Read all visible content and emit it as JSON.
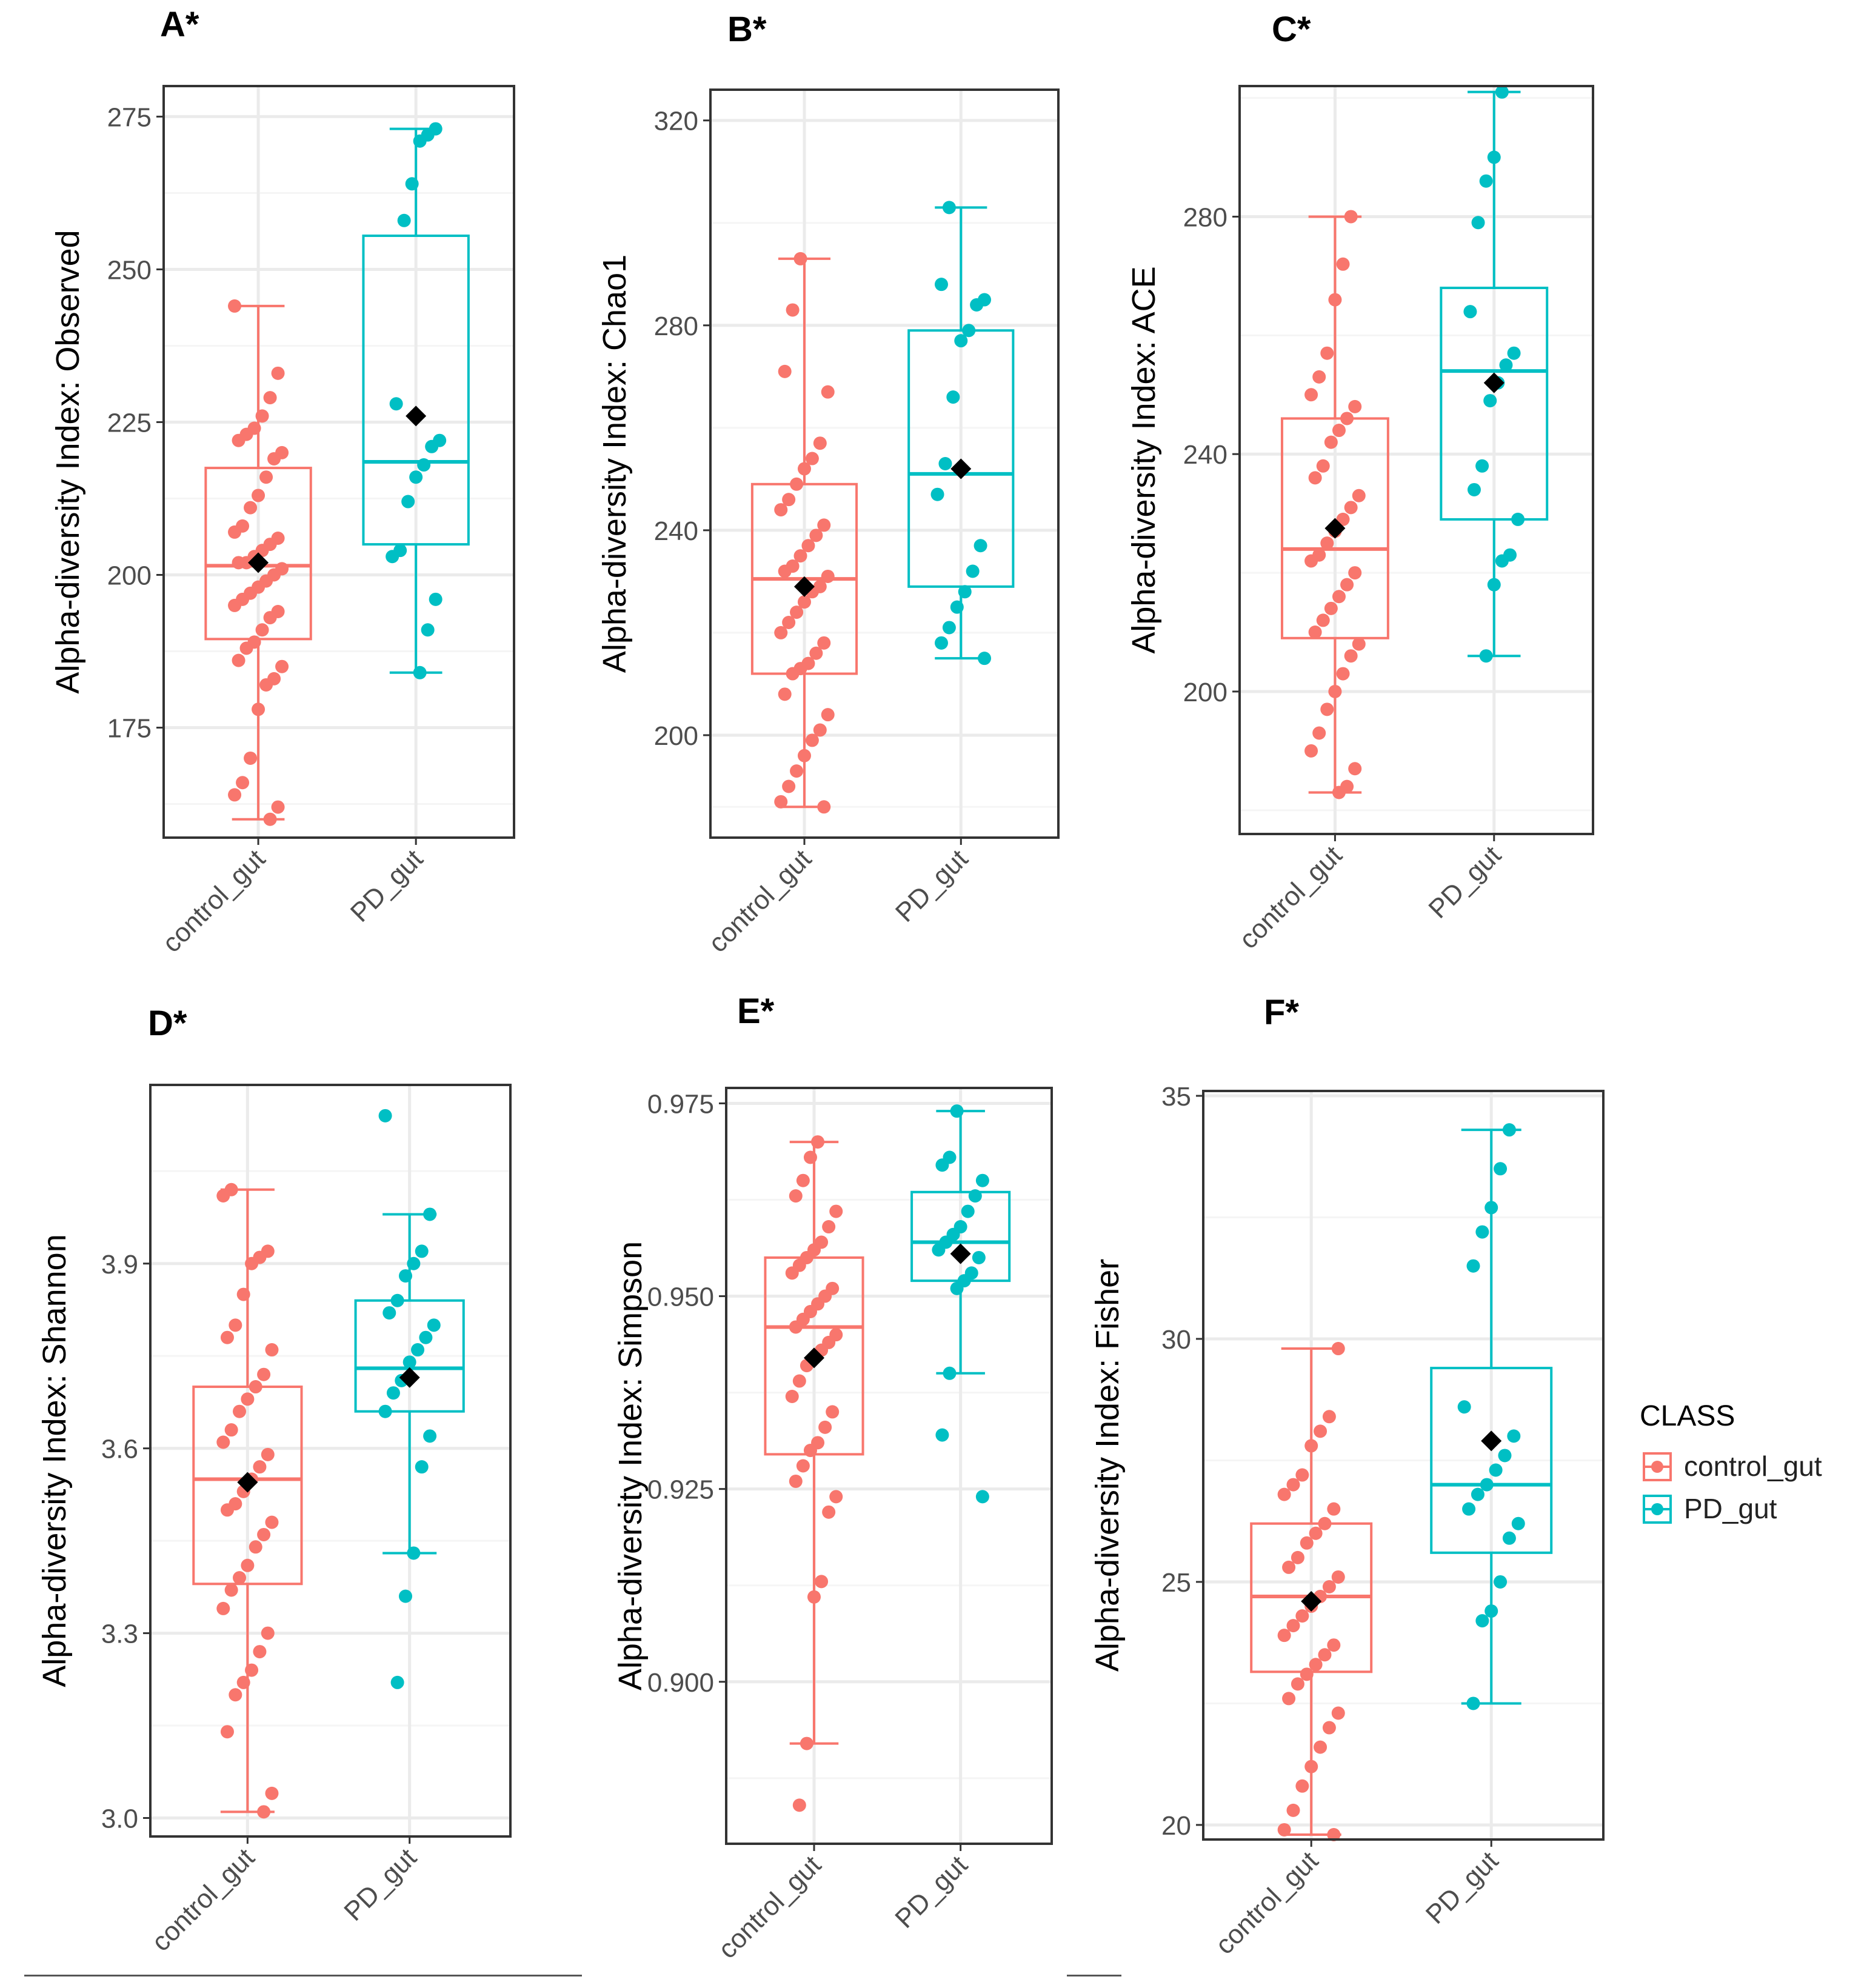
{
  "colors": {
    "control_gut": "#F8766D",
    "PD_gut": "#00BFC4",
    "mean_marker": "#000000",
    "grid_major": "#EBEBEB",
    "grid_minor": "#F5F5F5",
    "panel_border": "#333333",
    "tick_text": "#4D4D4D"
  },
  "legend": {
    "title": "CLASS",
    "entries": [
      "control_gut",
      "PD_gut"
    ],
    "placement": "right"
  },
  "chart_data": [
    {
      "panel_label": "A*",
      "type": "box",
      "ylabel": "Alpha-diversity Index: Observed",
      "categories": [
        "control_gut",
        "PD_gut"
      ],
      "ylim": [
        157,
        280
      ],
      "yticks": [
        175,
        200,
        225,
        250,
        275
      ],
      "ytick_labels": [
        "175",
        "200",
        "225",
        "250",
        "275"
      ],
      "minor_gridlines": [
        162.5,
        187.5,
        212.5,
        237.5,
        262.5
      ],
      "boxes": [
        {
          "group": "control_gut",
          "min": 160,
          "q1": 189.5,
          "median": 201.5,
          "q3": 217.5,
          "max": 244,
          "mean": 202,
          "points": [
            244,
            233,
            229,
            226,
            224,
            223,
            222,
            220,
            219,
            216,
            213,
            211,
            208,
            207,
            206,
            205,
            204,
            203,
            202,
            202,
            201,
            200,
            199,
            198,
            197,
            196,
            195,
            194,
            193,
            191,
            189,
            188,
            186,
            185,
            183,
            182,
            178,
            170,
            166,
            164,
            162,
            160
          ]
        },
        {
          "group": "PD_gut",
          "min": 184,
          "q1": 205,
          "median": 218.5,
          "q3": 255.5,
          "max": 273,
          "mean": 226,
          "points": [
            273,
            272,
            271,
            264,
            258,
            228,
            222,
            221,
            218,
            216,
            212,
            204,
            203,
            196,
            191,
            184
          ]
        }
      ]
    },
    {
      "panel_label": "B*",
      "type": "box",
      "ylabel": "Alpha-diversity Index: Chao1",
      "categories": [
        "control_gut",
        "PD_gut"
      ],
      "ylim": [
        180,
        326
      ],
      "yticks": [
        200,
        240,
        280,
        320
      ],
      "ytick_labels": [
        "200",
        "240",
        "280",
        "320"
      ],
      "minor_gridlines": [
        186,
        220,
        260,
        300
      ],
      "boxes": [
        {
          "group": "control_gut",
          "min": 186,
          "q1": 212,
          "median": 230.5,
          "q3": 249,
          "max": 293,
          "mean": 229,
          "points": [
            293,
            283,
            271,
            267,
            257,
            254,
            252,
            249,
            246,
            244,
            241,
            239,
            237,
            235,
            233,
            232,
            231,
            229,
            228,
            226,
            224,
            222,
            220,
            218,
            216,
            214,
            213,
            212,
            208,
            204,
            201,
            199,
            196,
            193,
            190,
            187,
            186
          ]
        },
        {
          "group": "PD_gut",
          "min": 215,
          "q1": 229,
          "median": 251,
          "q3": 279,
          "max": 303,
          "mean": 252,
          "points": [
            303,
            288,
            285,
            284,
            279,
            277,
            266,
            253,
            247,
            237,
            232,
            228,
            225,
            221,
            218,
            215
          ]
        }
      ]
    },
    {
      "panel_label": "C*",
      "type": "box",
      "ylabel": "Alpha-diversity Index: ACE",
      "categories": [
        "control_gut",
        "PD_gut"
      ],
      "ylim": [
        176,
        302
      ],
      "yticks": [
        200,
        240,
        280
      ],
      "ytick_labels": [
        "200",
        "240",
        "280"
      ],
      "minor_gridlines": [
        180,
        220,
        260,
        300
      ],
      "boxes": [
        {
          "group": "control_gut",
          "min": 183,
          "q1": 209,
          "median": 224,
          "q3": 246,
          "max": 280,
          "mean": 227.5,
          "points": [
            280,
            272,
            266,
            257,
            253,
            250,
            248,
            246,
            244,
            242,
            238,
            236,
            233,
            231,
            229,
            227,
            225,
            223,
            222,
            220,
            218,
            216,
            214,
            212,
            210,
            208,
            206,
            203,
            200,
            197,
            193,
            190,
            187,
            184,
            183
          ]
        },
        {
          "group": "PD_gut",
          "min": 206,
          "q1": 229,
          "median": 254,
          "q3": 268,
          "max": 301,
          "mean": 252,
          "points": [
            301,
            290,
            286,
            279,
            264,
            257,
            255,
            252,
            249,
            238,
            234,
            229,
            223,
            222,
            218,
            206
          ]
        }
      ]
    },
    {
      "panel_label": "D*",
      "type": "box",
      "ylabel": "Alpha-diversity Index: Shannon",
      "categories": [
        "control_gut",
        "PD_gut"
      ],
      "ylim": [
        2.97,
        4.19
      ],
      "yticks": [
        3.0,
        3.3,
        3.6,
        3.9
      ],
      "ytick_labels": [
        "3.0",
        "3.3",
        "3.6",
        "3.9"
      ],
      "minor_gridlines": [
        3.15,
        3.45,
        3.75,
        4.05
      ],
      "boxes": [
        {
          "group": "control_gut",
          "min": 3.01,
          "q1": 3.38,
          "median": 3.55,
          "q3": 3.7,
          "max": 4.02,
          "mean": 3.545,
          "points": [
            4.02,
            4.01,
            3.92,
            3.91,
            3.9,
            3.85,
            3.8,
            3.78,
            3.76,
            3.72,
            3.7,
            3.68,
            3.66,
            3.63,
            3.61,
            3.59,
            3.57,
            3.55,
            3.53,
            3.51,
            3.5,
            3.48,
            3.46,
            3.44,
            3.41,
            3.39,
            3.37,
            3.34,
            3.3,
            3.27,
            3.24,
            3.22,
            3.2,
            3.14,
            3.04,
            3.01
          ]
        },
        {
          "group": "PD_gut",
          "min": 3.43,
          "q1": 3.66,
          "median": 3.73,
          "q3": 3.84,
          "max": 3.98,
          "mean": 3.715,
          "points": [
            4.14,
            3.98,
            3.92,
            3.9,
            3.88,
            3.84,
            3.82,
            3.8,
            3.78,
            3.76,
            3.74,
            3.71,
            3.69,
            3.66,
            3.62,
            3.57,
            3.43,
            3.36,
            3.22
          ]
        }
      ]
    },
    {
      "panel_label": "E*",
      "type": "box",
      "ylabel": "Alpha-diversity Index: Simpson",
      "categories": [
        "control_gut",
        "PD_gut"
      ],
      "ylim": [
        0.879,
        0.977
      ],
      "yticks": [
        0.9,
        0.925,
        0.95,
        0.975
      ],
      "ytick_labels": [
        "0.900",
        "0.925",
        "0.950",
        "0.975"
      ],
      "minor_gridlines": [
        0.8875,
        0.9125,
        0.9375,
        0.9625
      ],
      "boxes": [
        {
          "group": "control_gut",
          "min": 0.892,
          "q1": 0.9295,
          "median": 0.946,
          "q3": 0.955,
          "max": 0.97,
          "mean": 0.942,
          "points": [
            0.97,
            0.968,
            0.965,
            0.963,
            0.961,
            0.959,
            0.957,
            0.956,
            0.955,
            0.954,
            0.953,
            0.951,
            0.95,
            0.949,
            0.948,
            0.947,
            0.946,
            0.945,
            0.944,
            0.943,
            0.942,
            0.941,
            0.939,
            0.937,
            0.935,
            0.933,
            0.931,
            0.93,
            0.928,
            0.926,
            0.924,
            0.922,
            0.913,
            0.911,
            0.892,
            0.884
          ]
        },
        {
          "group": "PD_gut",
          "min": 0.94,
          "q1": 0.952,
          "median": 0.957,
          "q3": 0.9635,
          "max": 0.974,
          "mean": 0.9555,
          "points": [
            0.974,
            0.968,
            0.967,
            0.965,
            0.963,
            0.961,
            0.959,
            0.958,
            0.957,
            0.956,
            0.955,
            0.953,
            0.952,
            0.951,
            0.94,
            0.932,
            0.924
          ]
        }
      ]
    },
    {
      "panel_label": "F*",
      "type": "box",
      "ylabel": "Alpha-diversity Index: Fisher",
      "categories": [
        "control_gut",
        "PD_gut"
      ],
      "ylim": [
        19.7,
        35.1
      ],
      "yticks": [
        20,
        25,
        30,
        35
      ],
      "ytick_labels": [
        "20",
        "25",
        "30",
        "35"
      ],
      "minor_gridlines": [
        22.5,
        27.5,
        32.5
      ],
      "boxes": [
        {
          "group": "control_gut",
          "min": 19.8,
          "q1": 23.15,
          "median": 24.7,
          "q3": 26.2,
          "max": 29.8,
          "mean": 24.6,
          "points": [
            29.8,
            28.4,
            28.1,
            27.8,
            27.2,
            27.0,
            26.8,
            26.5,
            26.2,
            26.0,
            25.8,
            25.5,
            25.3,
            25.1,
            24.9,
            24.7,
            24.5,
            24.3,
            24.1,
            23.9,
            23.7,
            23.5,
            23.3,
            23.1,
            22.9,
            22.6,
            22.3,
            22.0,
            21.6,
            21.2,
            20.8,
            20.3,
            19.9,
            19.8
          ]
        },
        {
          "group": "PD_gut",
          "min": 22.5,
          "q1": 25.6,
          "median": 27.0,
          "q3": 29.4,
          "max": 34.3,
          "mean": 27.9,
          "points": [
            34.3,
            33.5,
            32.7,
            32.2,
            31.5,
            28.6,
            28.0,
            27.6,
            27.3,
            27.0,
            26.8,
            26.5,
            26.2,
            25.9,
            25.0,
            24.4,
            24.2,
            22.5
          ]
        }
      ]
    }
  ]
}
